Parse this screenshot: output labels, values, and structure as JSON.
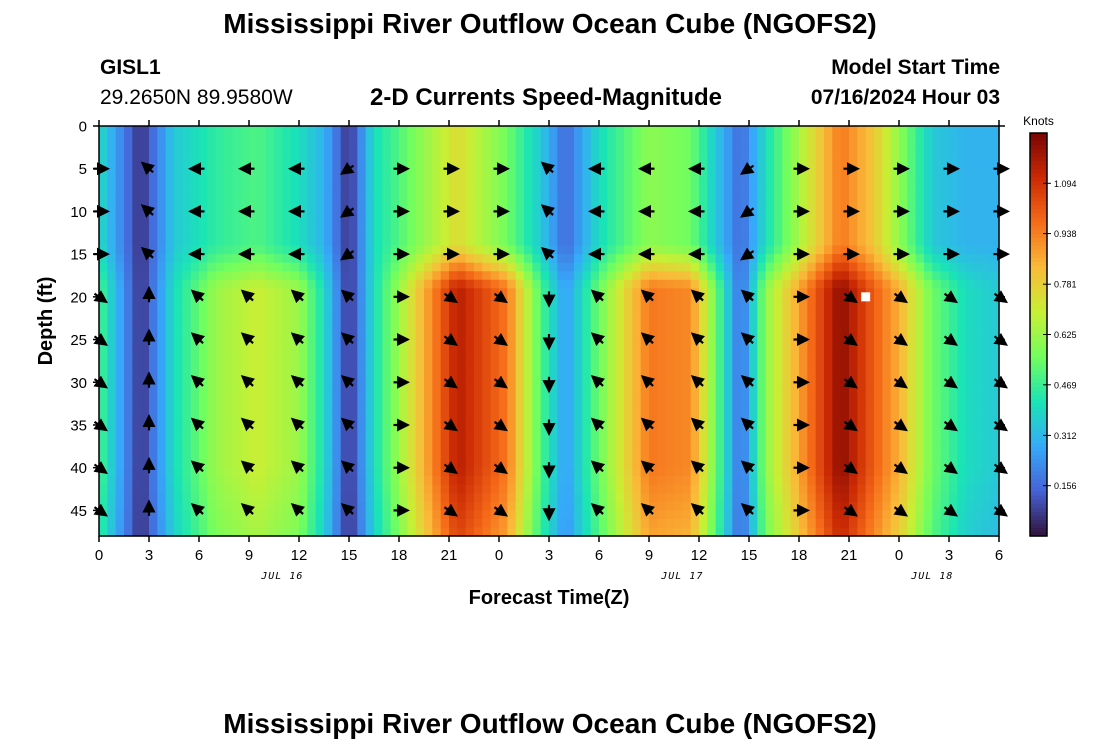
{
  "page": {
    "title_top": "Mississippi River Outflow Ocean Cube (NGOFS2)",
    "station": "GISL1",
    "coords": "29.2650N  89.9580W",
    "subtitle": "2-D Currents Speed-Magnitude",
    "model_start_label": "Model Start Time",
    "model_start_value": "07/16/2024 Hour 03",
    "title_bottom": "Mississippi River Outflow Ocean Cube (NGOFS2)"
  },
  "chart_data": {
    "type": "heatmap",
    "title": "2-D Currents Speed-Magnitude",
    "xlabel": "Forecast Time(Z)",
    "ylabel": "Depth (ft)",
    "x_tick_labels": [
      "0",
      "3",
      "6",
      "9",
      "12",
      "15",
      "18",
      "21",
      "0",
      "3",
      "6",
      "9",
      "12",
      "15",
      "18",
      "21",
      "0",
      "3",
      "6"
    ],
    "x_start_hour": 0,
    "x_end_hour": 54,
    "date_labels": [
      {
        "text": "JUL 16",
        "hour": 11
      },
      {
        "text": "JUL 17",
        "hour": 35
      },
      {
        "text": "JUL 18",
        "hour": 50
      }
    ],
    "y_ticks": [
      0,
      5,
      10,
      15,
      20,
      25,
      30,
      35,
      40,
      45
    ],
    "ylim": [
      0,
      48
    ],
    "colorbar_label": "Knots",
    "colorbar_ticks": [
      "1.094",
      "0.938",
      "0.781",
      "0.625",
      "0.469",
      "0.312",
      "0.156"
    ],
    "colorbar_range": [
      0,
      1.25
    ],
    "colormap": [
      "#30123b",
      "#4662d7",
      "#36aaf9",
      "#1ae4b6",
      "#72fe5e",
      "#c8ef34",
      "#faba39",
      "#f66b19",
      "#cb2a04",
      "#7a0403"
    ],
    "speed_profile_times": [
      0,
      2.5,
      4.5,
      7,
      9.5,
      12,
      13.5,
      15,
      16.5,
      21.5,
      24.5,
      26.5,
      28,
      30,
      33,
      35.5,
      37,
      38.5,
      40,
      44.5,
      46.5,
      48,
      50,
      52,
      54
    ],
    "speed_profile_deep": [
      0.5,
      0.05,
      0.4,
      0.62,
      0.7,
      0.62,
      0.4,
      0.05,
      0.4,
      1.15,
      0.95,
      0.5,
      0.25,
      0.55,
      0.95,
      0.92,
      0.55,
      0.15,
      0.6,
      1.22,
      1.0,
      0.85,
      0.55,
      0.4,
      0.35
    ],
    "speed_profile_surface": [
      0.4,
      0.05,
      0.35,
      0.45,
      0.5,
      0.4,
      0.3,
      0.05,
      0.4,
      0.75,
      0.55,
      0.35,
      0.15,
      0.4,
      0.6,
      0.55,
      0.35,
      0.15,
      0.4,
      0.95,
      0.8,
      0.6,
      0.35,
      0.3,
      0.3
    ],
    "surface_layer_depth": 16.5,
    "arrows": {
      "depths": [
        5,
        10,
        15,
        20,
        25,
        30,
        35,
        40,
        45
      ],
      "times_and_directions": [
        {
          "hour": 0,
          "surface": "east",
          "deep": "southeast"
        },
        {
          "hour": 3,
          "surface": "northwest",
          "deep": "north"
        },
        {
          "hour": 6,
          "surface": "west",
          "deep": "northwest"
        },
        {
          "hour": 9,
          "surface": "west",
          "deep": "northwest"
        },
        {
          "hour": 12,
          "surface": "west",
          "deep": "northwest"
        },
        {
          "hour": 15,
          "surface": "southwest",
          "deep": "northwest"
        },
        {
          "hour": 18,
          "surface": "east",
          "deep": "east"
        },
        {
          "hour": 21,
          "surface": "east",
          "deep": "southeast"
        },
        {
          "hour": 24,
          "surface": "east",
          "deep": "southeast"
        },
        {
          "hour": 27,
          "surface": "northwest",
          "deep": "south"
        },
        {
          "hour": 30,
          "surface": "west",
          "deep": "northwest"
        },
        {
          "hour": 33,
          "surface": "west",
          "deep": "northwest"
        },
        {
          "hour": 36,
          "surface": "west",
          "deep": "northwest"
        },
        {
          "hour": 39,
          "surface": "southwest",
          "deep": "northwest"
        },
        {
          "hour": 42,
          "surface": "east",
          "deep": "east"
        },
        {
          "hour": 45,
          "surface": "east",
          "deep": "southeast"
        },
        {
          "hour": 48,
          "surface": "east",
          "deep": "southeast"
        },
        {
          "hour": 51,
          "surface": "east",
          "deep": "southeast"
        },
        {
          "hour": 54,
          "surface": "east",
          "deep": "southeast"
        }
      ]
    },
    "marker": {
      "hour": 46,
      "depth": 20,
      "color": "#ffffff"
    },
    "grid": false
  }
}
